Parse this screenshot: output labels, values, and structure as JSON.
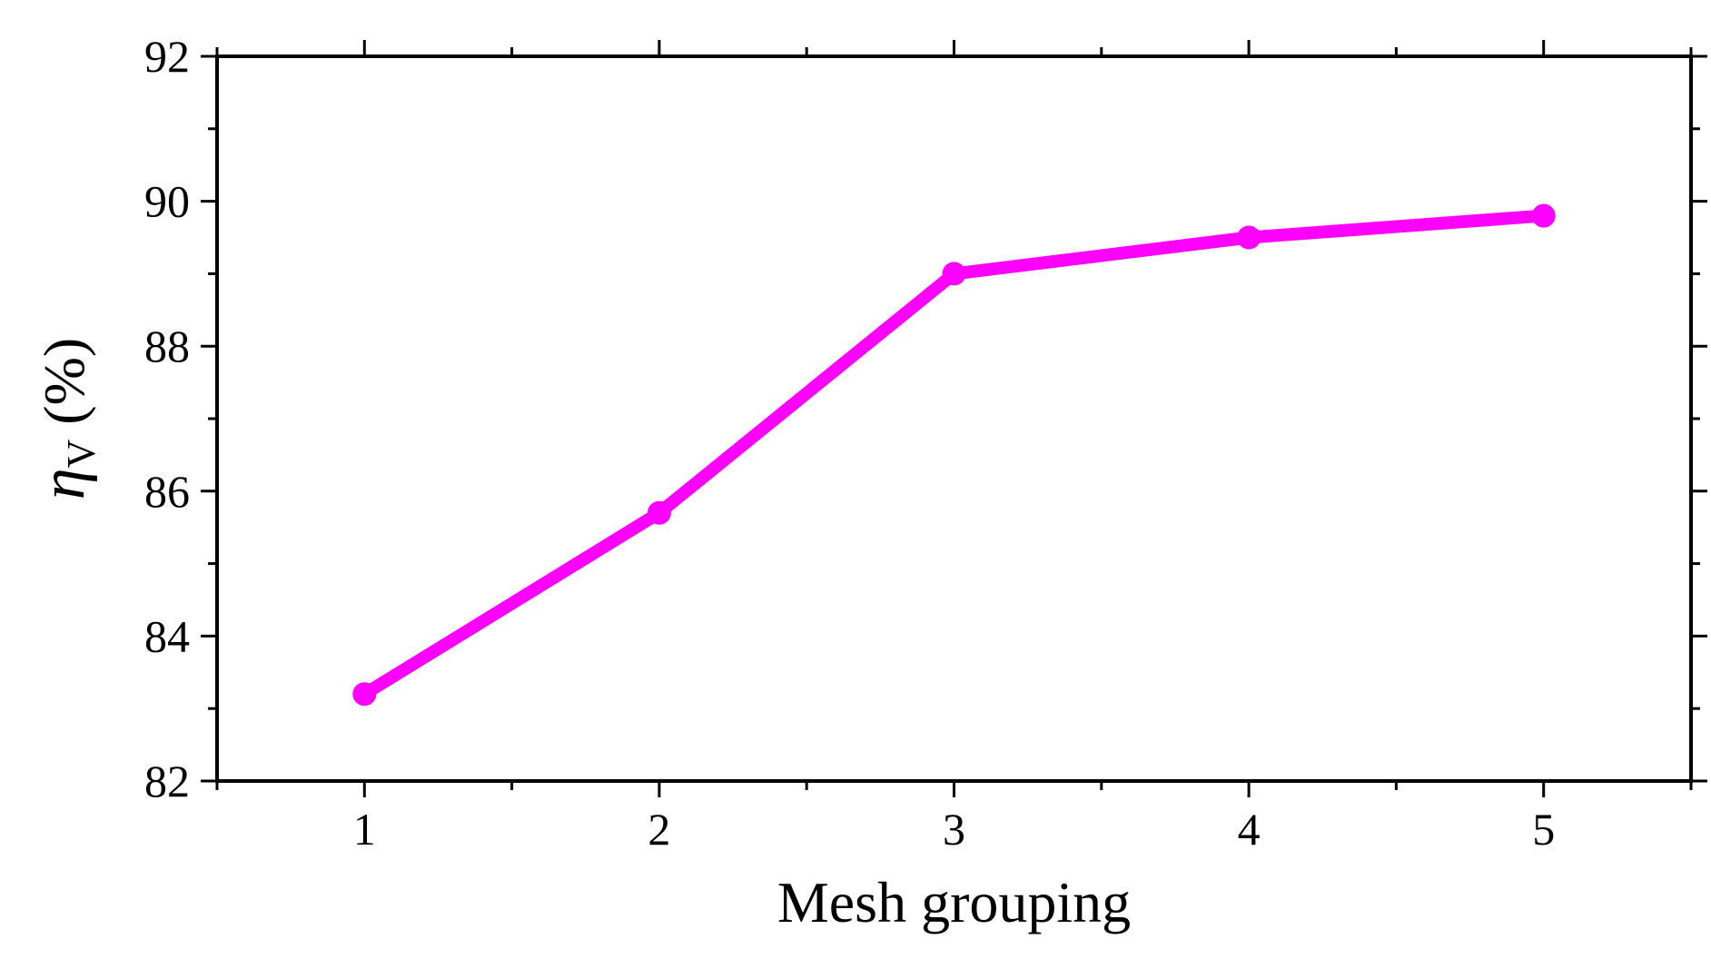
{
  "chart_data": {
    "type": "line",
    "x": [
      1,
      2,
      3,
      4,
      5
    ],
    "series": [
      {
        "values": [
          83.2,
          85.7,
          89.0,
          89.5,
          89.8
        ],
        "color": "#ff00ff"
      }
    ],
    "xlabel": "Mesh grouping",
    "ylabel": {
      "symbol": "η",
      "subscript": "V",
      "unit": " (%)"
    },
    "xlim": [
      0.5,
      5.5
    ],
    "ylim": [
      82,
      92
    ],
    "x_ticks": [
      "1",
      "2",
      "3",
      "4",
      "5"
    ],
    "y_ticks": [
      "82",
      "84",
      "86",
      "88",
      "90",
      "92"
    ],
    "grid": false,
    "legend": "none",
    "marker": "circle"
  }
}
